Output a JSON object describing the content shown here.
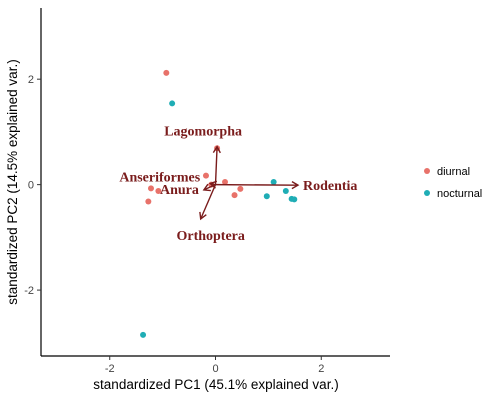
{
  "chart_data": {
    "type": "scatter",
    "title": "",
    "xlabel": "standardized PC1 (45.1% explained var.)",
    "ylabel": "standardized PC2 (14.5% explained var.)",
    "xlim": [
      -3.3,
      3.3
    ],
    "ylim": [
      -3.25,
      3.35
    ],
    "x_ticks": [
      -2,
      0,
      2
    ],
    "y_ticks": [
      -2,
      0,
      2
    ],
    "grid": false,
    "legend_position": "right",
    "series": [
      {
        "name": "diurnal",
        "color": "#E8726A",
        "points": [
          {
            "x": -0.93,
            "y": 2.12
          },
          {
            "x": -1.22,
            "y": -0.07
          },
          {
            "x": -1.08,
            "y": -0.12
          },
          {
            "x": -1.27,
            "y": -0.32
          },
          {
            "x": -0.18,
            "y": 0.17
          },
          {
            "x": -0.08,
            "y": 0.0
          },
          {
            "x": 0.03,
            "y": 0.69
          },
          {
            "x": 0.18,
            "y": 0.05
          },
          {
            "x": 0.36,
            "y": -0.2
          },
          {
            "x": 0.47,
            "y": -0.08
          }
        ]
      },
      {
        "name": "nocturnal",
        "color": "#1FADB5",
        "points": [
          {
            "x": -0.82,
            "y": 1.54
          },
          {
            "x": -1.37,
            "y": -2.85
          },
          {
            "x": 0.97,
            "y": -0.22
          },
          {
            "x": 1.1,
            "y": 0.05
          },
          {
            "x": 1.33,
            "y": -0.12
          },
          {
            "x": 1.44,
            "y": -0.27
          },
          {
            "x": 1.49,
            "y": -0.28
          }
        ]
      }
    ],
    "loadings": [
      {
        "label": "Lagomorpha",
        "x": 0.03,
        "y": 0.72
      },
      {
        "label": "Anseriformes",
        "x": -0.1,
        "y": 0.02
      },
      {
        "label": "Anura",
        "x": -0.22,
        "y": -0.1
      },
      {
        "label": "Orthoptera",
        "x": -0.28,
        "y": -0.65
      },
      {
        "label": "Rodentia",
        "x": 1.56,
        "y": -0.01
      }
    ],
    "loading_color": "#7a1c1c"
  }
}
